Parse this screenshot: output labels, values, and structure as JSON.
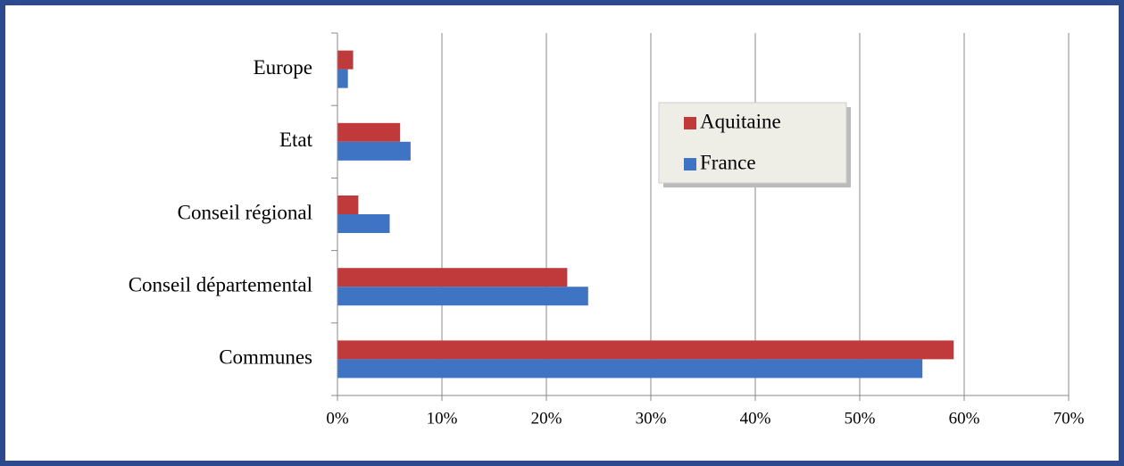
{
  "chart_data": {
    "type": "bar",
    "orientation": "horizontal",
    "categories": [
      "Europe",
      "Etat",
      "Conseil régional",
      "Conseil départemental",
      "Communes"
    ],
    "series": [
      {
        "name": "Aquitaine",
        "color": "#c0393b",
        "values": [
          1.5,
          6,
          2,
          22,
          59
        ]
      },
      {
        "name": "France",
        "color": "#3f74c4",
        "values": [
          1,
          7,
          5,
          24,
          56
        ]
      }
    ],
    "xlim": [
      0,
      70
    ],
    "xticks": [
      {
        "value": 0,
        "label": "0%"
      },
      {
        "value": 10,
        "label": "10%"
      },
      {
        "value": 20,
        "label": "20%"
      },
      {
        "value": 30,
        "label": "30%"
      },
      {
        "value": 40,
        "label": "40%"
      },
      {
        "value": 50,
        "label": "50%"
      },
      {
        "value": 60,
        "label": "60%"
      },
      {
        "value": 70,
        "label": "70%"
      }
    ],
    "grid": true
  }
}
